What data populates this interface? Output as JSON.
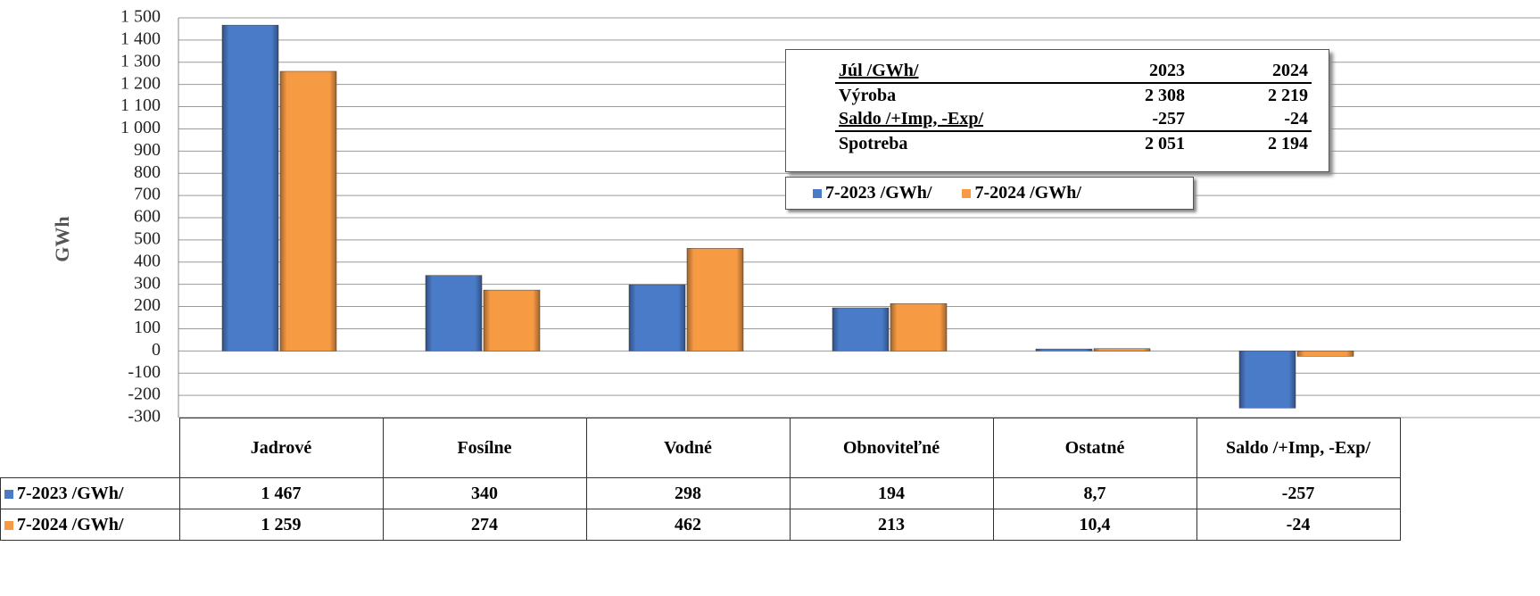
{
  "chart_data": {
    "type": "bar",
    "y_label": "GWh",
    "categories": [
      "Jadrové",
      "Fosílne",
      "Vodné",
      "Obnoviteľné",
      "Ostatné",
      "Saldo /+Imp, -Exp/"
    ],
    "series": [
      {
        "name": "7-2023 /GWh/",
        "color": "#4a7bc8",
        "values": [
          1467,
          340,
          298,
          194,
          8.7,
          -257
        ],
        "value_labels": [
          "1 467",
          "340",
          "298",
          "194",
          "8,7",
          "-257"
        ]
      },
      {
        "name": "7-2024 /GWh/",
        "color": "#f79a44",
        "values": [
          1259,
          274,
          462,
          213,
          10.4,
          -24
        ],
        "value_labels": [
          "1 259",
          "274",
          "462",
          "213",
          "10,4",
          "-24"
        ]
      }
    ],
    "ylim": [
      -300,
      1500
    ],
    "yticks": [
      -300,
      -200,
      -100,
      0,
      100,
      200,
      300,
      400,
      500,
      600,
      700,
      800,
      900,
      {
        "value": 1000,
        "label": "1 000"
      },
      {
        "value": 1100,
        "label": "1 100"
      },
      {
        "value": 1200,
        "label": "1 200"
      },
      {
        "value": 1300,
        "label": "1 300"
      },
      {
        "value": 1400,
        "label": "1 400"
      },
      {
        "value": 1500,
        "label": "1 500"
      }
    ],
    "grid": true,
    "inset_table": {
      "header": [
        "Júl /GWh/",
        "2023",
        "2024"
      ],
      "rows": [
        [
          "Výroba",
          "2 308",
          "2 219"
        ],
        [
          "Saldo /+Imp, -Exp/",
          "-257",
          "-24"
        ],
        [
          "Spotreba",
          "2 051",
          "2 194"
        ]
      ]
    }
  }
}
